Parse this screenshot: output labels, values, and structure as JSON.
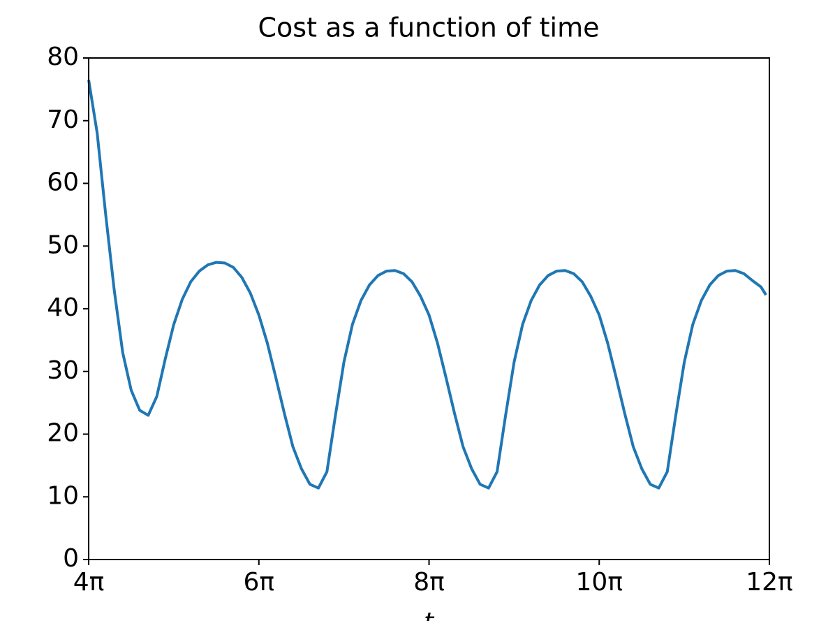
{
  "chart_data": {
    "type": "line",
    "title": "Cost as a function of time",
    "xlabel": "t",
    "x": [
      12.566,
      12.881,
      13.195,
      13.509,
      13.823,
      14.137,
      14.451,
      14.765,
      15.08,
      15.394,
      15.708,
      16.022,
      16.336,
      16.65,
      16.965,
      17.279,
      17.593,
      17.907,
      18.221,
      18.535,
      18.85,
      19.164,
      19.478,
      19.792,
      20.106,
      20.42,
      20.735,
      21.049,
      21.363,
      21.677,
      21.991,
      22.305,
      22.619,
      22.934,
      23.248,
      23.562,
      23.876,
      24.19,
      24.504,
      24.819,
      25.133,
      25.447,
      25.761,
      26.075,
      26.389,
      26.704,
      27.018,
      27.332,
      27.646,
      27.96,
      28.274,
      28.588,
      28.903,
      29.217,
      29.531,
      29.845,
      30.159,
      30.473,
      30.788,
      31.102,
      31.416,
      31.73,
      32.044,
      32.358,
      32.673,
      32.987,
      33.301,
      33.615,
      33.929,
      34.243,
      34.558,
      34.872,
      35.186,
      35.5,
      35.814,
      36.128,
      36.442,
      36.757,
      37.071,
      37.385,
      37.574
    ],
    "series": [
      {
        "name": "cost",
        "color": "#1f77b4",
        "values": [
          76.5,
          68,
          55,
          43,
          33,
          27,
          23.8,
          23,
          26,
          32,
          37.5,
          41.5,
          44.3,
          46,
          47,
          47.4,
          47.3,
          46.6,
          45,
          42.5,
          39,
          34.5,
          29,
          23.3,
          18,
          14.5,
          12,
          11.4,
          14,
          23,
          31.5,
          37.5,
          41.3,
          43.8,
          45.3,
          46,
          46.1,
          45.6,
          44.3,
          42,
          39,
          34.5,
          29,
          23.3,
          18,
          14.5,
          12,
          11.4,
          14,
          23,
          31.5,
          37.5,
          41.3,
          43.8,
          45.3,
          46,
          46.1,
          45.6,
          44.3,
          42,
          39,
          34.5,
          29,
          23.3,
          18,
          14.5,
          12,
          11.4,
          14,
          23,
          31.5,
          37.5,
          41.3,
          43.8,
          45.3,
          46,
          46.1,
          45.6,
          44.5,
          43.5,
          42.2
        ]
      }
    ],
    "xlim": [
      12.566,
      37.699
    ],
    "xticks": [
      {
        "value": 12.566,
        "label": "4π"
      },
      {
        "value": 18.85,
        "label": "6π"
      },
      {
        "value": 25.133,
        "label": "8π"
      },
      {
        "value": 31.416,
        "label": "10π"
      },
      {
        "value": 37.699,
        "label": "12π"
      }
    ],
    "ylim": [
      0,
      80
    ],
    "yticks": [
      0,
      10,
      20,
      30,
      40,
      50,
      60,
      70,
      80
    ],
    "grid": false
  }
}
